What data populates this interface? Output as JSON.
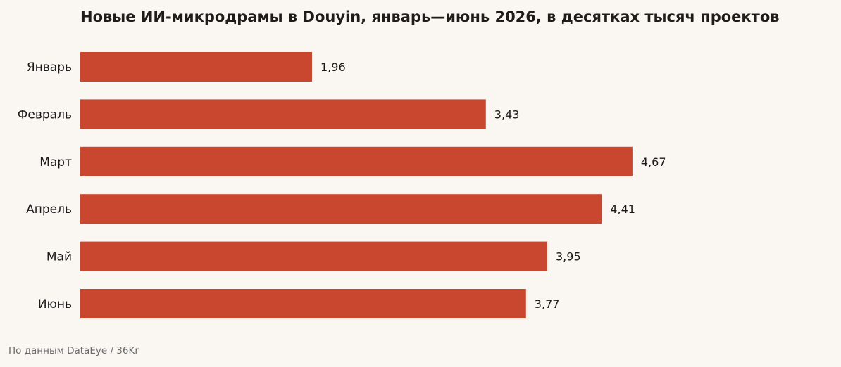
{
  "chart_data": {
    "type": "bar",
    "orientation": "horizontal",
    "title": "Новые ИИ-микродрамы в Douyin, январь—июнь 2026, в десятках тысяч проектов",
    "categories": [
      "Январь",
      "Февраль",
      "Март",
      "Апрель",
      "Май",
      "Июнь"
    ],
    "values": [
      1.96,
      3.43,
      4.67,
      4.41,
      3.95,
      3.77
    ],
    "value_labels": [
      "1,96",
      "3,43",
      "4,67",
      "4,41",
      "3,95",
      "3,77"
    ],
    "xlim": [
      0,
      5.6
    ],
    "grid": false,
    "legend": "none",
    "bar_color": "#c9472f",
    "source": "По данным DataEye / 36Kr"
  }
}
